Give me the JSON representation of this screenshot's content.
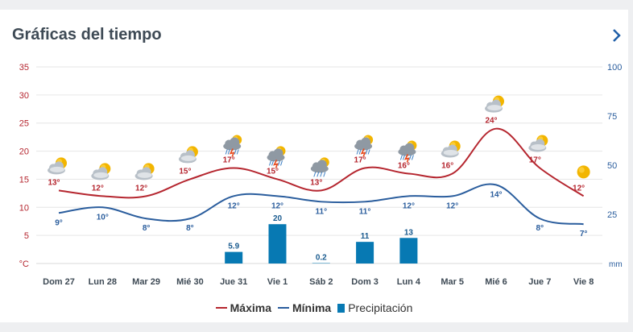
{
  "card": {
    "title": "Gráficas del tiempo"
  },
  "legend": {
    "max": "Máxima",
    "min": "Mínima",
    "precip": "Precipitación"
  },
  "colors": {
    "max": "#b5262f",
    "min": "#2a5d9d",
    "precip": "#0779b3",
    "axis_left": "#b5262f",
    "axis_right": "#2a5d9d"
  },
  "chart_data": {
    "type": "line",
    "title": "",
    "left_axis": {
      "unit": "°C",
      "ticks": [
        5,
        10,
        15,
        20,
        25,
        30,
        35
      ],
      "ylim": [
        0,
        35
      ]
    },
    "right_axis": {
      "unit": "mm",
      "ticks": [
        25,
        50,
        75,
        100
      ],
      "ylim": [
        0,
        100
      ]
    },
    "categories": [
      "Dom 27",
      "Lun 28",
      "Mar 29",
      "Mié 30",
      "Jue 31",
      "Vie 1",
      "Sáb 2",
      "Dom 3",
      "Lun 4",
      "Mar 5",
      "Mié 6",
      "Jue 7",
      "Vie 8"
    ],
    "series": [
      {
        "name": "Máxima",
        "type": "line",
        "values": [
          13,
          12,
          12,
          15,
          17,
          15,
          13,
          17,
          16,
          16,
          24,
          17,
          12
        ]
      },
      {
        "name": "Mínima",
        "type": "line",
        "values": [
          9,
          10,
          8,
          8,
          12,
          12,
          11,
          11,
          12,
          12,
          14,
          8,
          7
        ]
      },
      {
        "name": "Precipitación",
        "type": "bar",
        "values": [
          null,
          null,
          null,
          null,
          5.9,
          20,
          0.2,
          11,
          13,
          null,
          null,
          null,
          null
        ]
      }
    ],
    "max_labels": [
      "13°",
      "12°",
      "12°",
      "15°",
      "17°",
      "15°",
      "13°",
      "17°",
      "16°",
      "16°",
      "24°",
      "17°",
      "12°"
    ],
    "min_labels": [
      "9°",
      "10°",
      "8°",
      "8°",
      "12°",
      "12°",
      "11°",
      "11°",
      "12°",
      "12°",
      "14°",
      "8°",
      "7°"
    ],
    "precip_labels": [
      "",
      "",
      "",
      "",
      "5.9",
      "20",
      "0.2",
      "11",
      "13",
      "",
      "",
      "",
      ""
    ],
    "icons": [
      "partly-cloudy-icon",
      "partly-cloudy-icon",
      "partly-cloudy-icon",
      "partly-cloudy-icon",
      "thunderstorm-icon",
      "thunderstorm-icon",
      "rain-icon",
      "thunderstorm-icon",
      "thunderstorm-icon",
      "partly-cloudy-icon",
      "partly-cloudy-icon",
      "partly-cloudy-icon",
      "sun-icon"
    ],
    "grid": true,
    "legend_position": "bottom"
  }
}
